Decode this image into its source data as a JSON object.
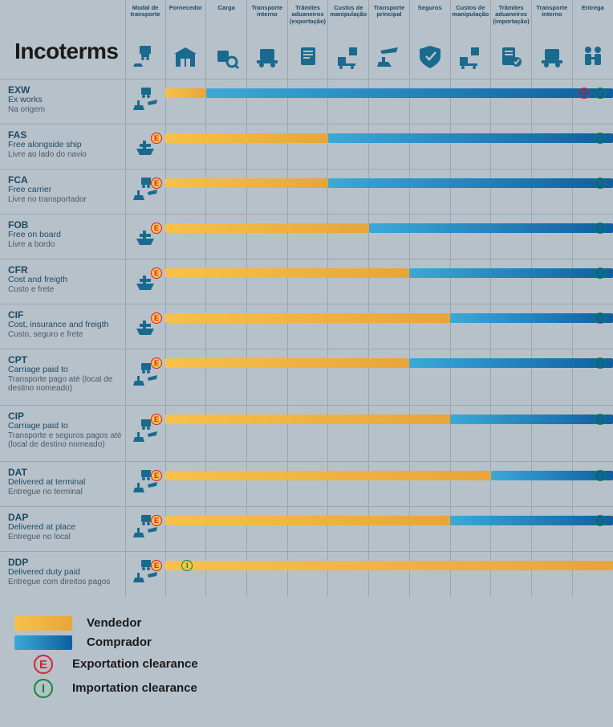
{
  "title": "Incoterms",
  "icon_color": "#1a6a8e",
  "seller_gradient": [
    "#f7c14a",
    "#e8a53a"
  ],
  "buyer_gradient": [
    "#3ba9d8",
    "#0e5f9f"
  ],
  "grid_border": "#9aa6b1",
  "background": "#b7c1ca",
  "columns": [
    {
      "key": "mode",
      "label": "Modal de transporte"
    },
    {
      "key": "fornecedor",
      "label": "Fornecedor"
    },
    {
      "key": "carga",
      "label": "Carga"
    },
    {
      "key": "transp_int",
      "label": "Transporte interno"
    },
    {
      "key": "adu_exp",
      "label": "Trâmites aduaneiros (exportação)"
    },
    {
      "key": "manip1",
      "label": "Custos de manipulação"
    },
    {
      "key": "principal",
      "label": "Transporte principal"
    },
    {
      "key": "seguros",
      "label": "Seguros"
    },
    {
      "key": "manip2",
      "label": "Custos de manipulação"
    },
    {
      "key": "adu_imp",
      "label": "Trâmites aduaneiros (importação)"
    },
    {
      "key": "transp_int2",
      "label": "Transporte interno"
    },
    {
      "key": "entrega",
      "label": "Entrega"
    }
  ],
  "rows": [
    {
      "code": "EXW",
      "en": "Ex works",
      "pt": "Na origem",
      "mode": "any",
      "seller_end": 1,
      "buyer_start": 1,
      "E_at": 10.15,
      "I_at": 10.55,
      "E_on": "buyer",
      "I_on": "buyer",
      "tall": false
    },
    {
      "code": "FAS",
      "en": "Free alongside ship",
      "pt": "Livre ao lado do navio",
      "mode": "sea",
      "seller_end": 4,
      "buyer_start": 4,
      "E_at": 0,
      "I_at": 10.55,
      "E_on": "seller",
      "I_on": "buyer",
      "tall": false
    },
    {
      "code": "FCA",
      "en": "Free carrier",
      "pt": "Livre no transportador",
      "mode": "any",
      "seller_end": 4,
      "buyer_start": 4,
      "E_at": 0,
      "I_at": 10.55,
      "E_on": "seller",
      "I_on": "buyer",
      "tall": false
    },
    {
      "code": "FOB",
      "en": "Free on board",
      "pt": "Livre a bordo",
      "mode": "sea",
      "seller_end": 5,
      "buyer_start": 5,
      "E_at": 0,
      "I_at": 10.55,
      "E_on": "seller",
      "I_on": "buyer",
      "tall": false
    },
    {
      "code": "CFR",
      "en": "Cost and freigth",
      "pt": "Custo e frete",
      "mode": "sea",
      "seller_end": 6,
      "buyer_start": 6,
      "E_at": 0,
      "I_at": 10.55,
      "E_on": "seller",
      "I_on": "buyer",
      "tall": false
    },
    {
      "code": "CIF",
      "en": "Cost, insurance and freigth",
      "pt": "Custo, seguro e frete",
      "mode": "sea",
      "seller_end": 7,
      "buyer_start": 7,
      "E_at": 0,
      "I_at": 10.55,
      "E_on": "seller",
      "I_on": "buyer",
      "tall": false
    },
    {
      "code": "CPT",
      "en": "Carriage paid to",
      "pt": "Transporte pago até (local  de destino nomeado)",
      "mode": "any",
      "seller_end": 6,
      "buyer_start": 6,
      "E_at": 0,
      "I_at": 10.55,
      "E_on": "seller",
      "I_on": "buyer",
      "tall": true
    },
    {
      "code": "CIP",
      "en": "Carriage paid to",
      "pt": "Transporte e seguros pagos até (local  de destino nomeado)",
      "mode": "any",
      "seller_end": 7,
      "buyer_start": 7,
      "E_at": 0,
      "I_at": 10.55,
      "E_on": "seller",
      "I_on": "buyer",
      "tall": true
    },
    {
      "code": "DAT",
      "en": "Delivered at terminal",
      "pt": "Entregue no terminal",
      "mode": "any",
      "seller_end": 8,
      "buyer_start": 8,
      "E_at": 0,
      "I_at": 10.55,
      "E_on": "seller",
      "I_on": "buyer",
      "tall": false
    },
    {
      "code": "DAP",
      "en": "Delivered at place",
      "pt": "Entregue no local",
      "mode": "any",
      "seller_end": 7,
      "buyer_start": 7,
      "E_at": 0,
      "I_at": 10.55,
      "E_on": "seller",
      "I_on": "buyer",
      "tall": false
    },
    {
      "code": "DDP",
      "en": "Delivered duty paid",
      "pt": "Entregue com direitos pagos",
      "mode": "any",
      "seller_end": 11,
      "buyer_start": 11,
      "E_at": 0,
      "I_at": 0.4,
      "E_on": "seller",
      "I_on": "seller",
      "tall": false
    }
  ],
  "legend": {
    "seller": "Vendedor",
    "buyer": "Comprador",
    "E": "Exportation clearance",
    "I": "Importation clearance"
  }
}
